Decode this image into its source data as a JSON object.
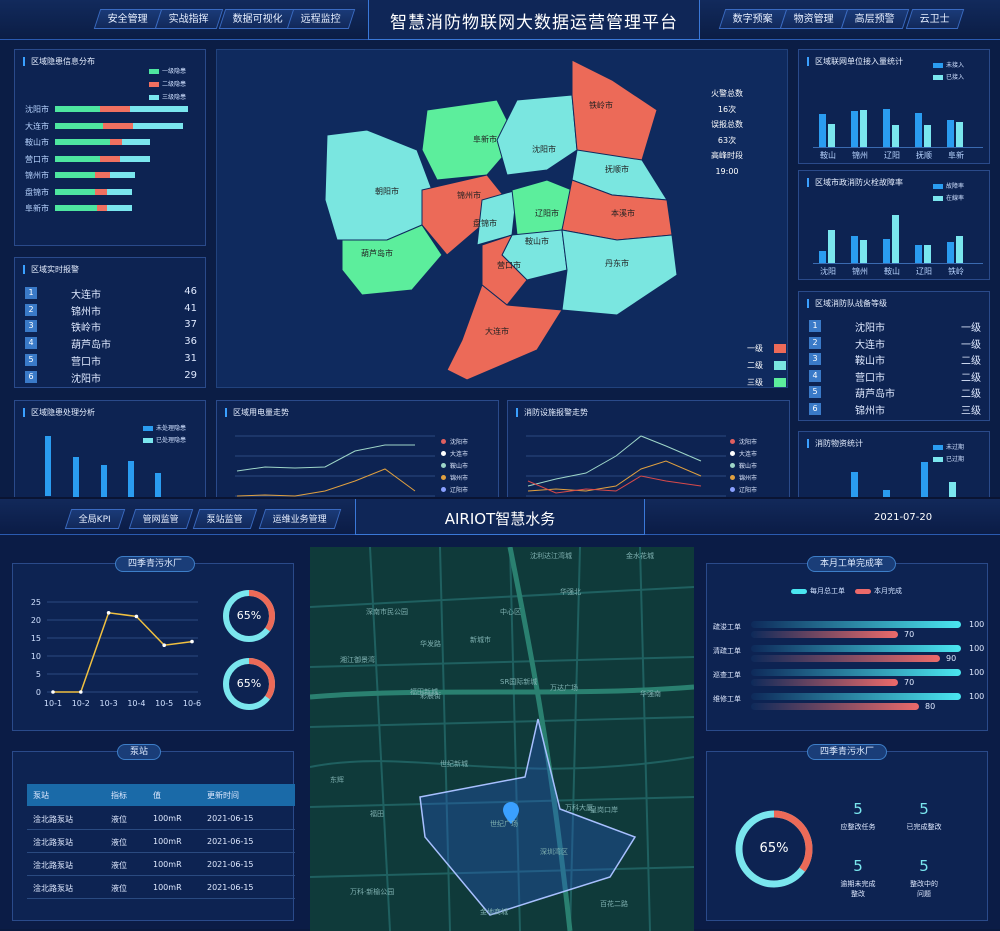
{
  "top": {
    "title": "智慧消防物联网大数据运营管理平台",
    "nav_left": [
      "安全管理",
      "实战指挥",
      "数据可视化",
      "远程监控"
    ],
    "nav_right": [
      "数字预案",
      "物资管理",
      "高层预警",
      "云卫士"
    ],
    "hazard_info": {
      "title": "区域隐患信息分布",
      "legend": [
        "一级隐患",
        "二级隐患",
        "三级隐患"
      ],
      "cities": [
        "沈阳市",
        "大连市",
        "鞍山市",
        "营口市",
        "锦州市",
        "盘锦市",
        "阜新市"
      ],
      "values": [
        [
          45,
          30,
          58
        ],
        [
          48,
          30,
          50
        ],
        [
          55,
          12,
          28
        ],
        [
          45,
          20,
          30
        ],
        [
          40,
          15,
          25
        ],
        [
          40,
          12,
          25
        ],
        [
          42,
          10,
          25
        ]
      ]
    },
    "realtime_alarm": {
      "title": "区域实时报警",
      "rows": [
        {
          "n": "1",
          "city": "大连市",
          "v": "46"
        },
        {
          "n": "2",
          "city": "锦州市",
          "v": "41"
        },
        {
          "n": "3",
          "city": "铁岭市",
          "v": "37"
        },
        {
          "n": "4",
          "city": "葫芦岛市",
          "v": "36"
        },
        {
          "n": "5",
          "city": "营口市",
          "v": "31"
        },
        {
          "n": "6",
          "city": "沈阳市",
          "v": "29"
        }
      ]
    },
    "map": {
      "stats": [
        "火警总数",
        "16次",
        "误报总数",
        "63次",
        "高峰时段",
        "19:00"
      ],
      "legend": [
        "一级",
        "二级",
        "三级"
      ],
      "labels": [
        "铁岭市",
        "阜新市",
        "沈阳市",
        "抚顺市",
        "朝阳市",
        "锦州市",
        "辽阳市",
        "本溪市",
        "盘锦市",
        "鞍山市",
        "葫芦岛市",
        "营口市",
        "丹东市",
        "大连市"
      ]
    },
    "networked_units": {
      "title": "区域联网单位接入量统计",
      "legend": [
        "未接入",
        "已接入"
      ],
      "cities": [
        "鞍山",
        "锦州",
        "辽阳",
        "抚顺",
        "阜新"
      ],
      "values": [
        [
          60,
          42
        ],
        [
          65,
          67
        ],
        [
          70,
          40
        ],
        [
          62,
          40
        ],
        [
          50,
          45
        ]
      ]
    },
    "hydrant_fault": {
      "title": "区域市政消防火栓故障率",
      "legend": [
        "故障率",
        "在線率"
      ],
      "cities": [
        "沈阳",
        "锦州",
        "鞍山",
        "辽阳",
        "铁岭"
      ],
      "values": [
        [
          20,
          55
        ],
        [
          45,
          38
        ],
        [
          40,
          80
        ],
        [
          30,
          30
        ],
        [
          35,
          45
        ]
      ]
    },
    "fire_team": {
      "title": "区域消防队战备等级",
      "rows": [
        {
          "n": "1",
          "city": "沈阳市",
          "v": "一级"
        },
        {
          "n": "2",
          "city": "大连市",
          "v": "一级"
        },
        {
          "n": "3",
          "city": "鞍山市",
          "v": "二级"
        },
        {
          "n": "4",
          "city": "营口市",
          "v": "二级"
        },
        {
          "n": "5",
          "city": "葫芦岛市",
          "v": "二级"
        },
        {
          "n": "6",
          "city": "锦州市",
          "v": "三级"
        }
      ]
    },
    "hazard_handle": {
      "title": "区域隐患处理分析",
      "legend": [
        "未处理隐患",
        "已处理隐患"
      ]
    },
    "power_trend": {
      "title": "区域用电量走势",
      "legend": [
        "沈阳市",
        "大连市",
        "鞍山市",
        "锦州市",
        "辽阳市"
      ]
    },
    "facility_alarm": {
      "title": "消防设施报警走势",
      "legend": [
        "沈阳市",
        "大连市",
        "鞍山市",
        "锦州市",
        "辽阳市"
      ]
    },
    "supplies": {
      "title": "消防物资统计",
      "legend": [
        "未过期",
        "已过期"
      ]
    }
  },
  "bottom": {
    "title": "AIRIOT智慧水务",
    "date": "2021-07-20",
    "nav_left": [
      "全局KPI",
      "管网监管",
      "泵站监管",
      "运维业务管理"
    ],
    "plant": {
      "title": "四季青污水厂",
      "ring1": "65%",
      "ring2": "65%"
    },
    "chart_data": {
      "type": "line",
      "categories": [
        "10-1",
        "10-2",
        "10-3",
        "10-4",
        "10-5",
        "10-6"
      ],
      "values": [
        0,
        0,
        22,
        21,
        13,
        14
      ],
      "ylim": [
        0,
        25
      ],
      "yticks": [
        "25",
        "20",
        "15",
        "10",
        "5",
        "0"
      ]
    },
    "pump": {
      "title": "泵站",
      "headers": [
        "泵站",
        "指标",
        "值",
        "更新时间"
      ],
      "rows": [
        [
          "淦北路泵站",
          "液位",
          "100mR",
          "2021-06-15"
        ],
        [
          "淦北路泵站",
          "液位",
          "100mR",
          "2021-06-15"
        ],
        [
          "淦北路泵站",
          "液位",
          "100mR",
          "2021-06-15"
        ],
        [
          "淦北路泵站",
          "液位",
          "100mR",
          "2021-06-15"
        ]
      ]
    },
    "map_labels": [
      "沈利达江湾城",
      "金水花城",
      "深南市民公园",
      "华发路",
      "中心区",
      "湘江御景湾",
      "华强北",
      "新城市",
      "福田新城",
      "SR国际新城",
      "万达广场",
      "彩晨街",
      "华强南",
      "世纪新城",
      "福田",
      "皇岗口岸",
      "世纪广场",
      "万科大厦",
      "万科·新榆公园",
      "深圳湾区",
      "东辉",
      "金地商城",
      "百花二路"
    ],
    "workorder": {
      "title": "本月工单完成率",
      "legend": [
        "每月总工单",
        "本月完成"
      ],
      "rows": [
        {
          "name": "疏浚工单",
          "total": "100",
          "done": "70"
        },
        {
          "name": "清疏工单",
          "total": "100",
          "done": "90"
        },
        {
          "name": "巡查工单",
          "total": "100",
          "done": "70"
        },
        {
          "name": "维修工单",
          "total": "100",
          "done": "80"
        }
      ]
    },
    "plant2": {
      "title": "四季青污水厂",
      "ring": "65%",
      "stats": [
        {
          "v": "5",
          "l": "应整改任务"
        },
        {
          "v": "5",
          "l": "已完成整改"
        },
        {
          "v": "5",
          "l1": "逾期未完成",
          "l2": "整改"
        },
        {
          "v": "5",
          "l1": "整改中的",
          "l2": "问题"
        }
      ]
    }
  }
}
